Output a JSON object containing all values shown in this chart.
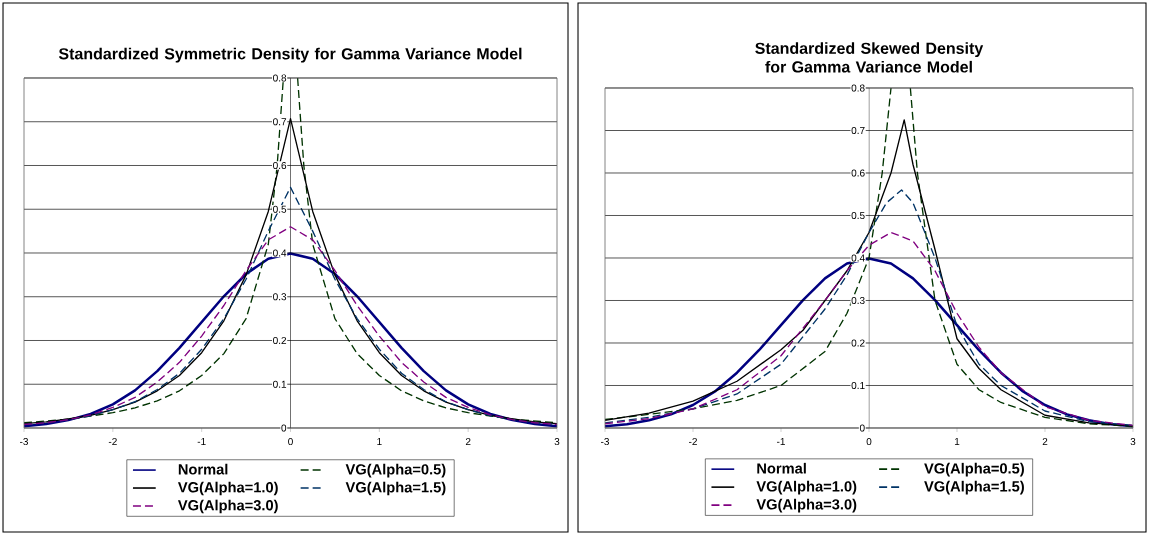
{
  "chart_data": [
    {
      "type": "line",
      "title": "Standardized Symmetric Density for Gamma Variance Model",
      "xlim": [
        -3,
        3
      ],
      "xticks": [
        -3,
        -2,
        -1,
        0,
        1,
        2,
        3
      ],
      "ylim": [
        0,
        0.8
      ],
      "yticks": [
        0,
        0.1,
        0.2,
        0.3,
        0.4,
        0.5,
        0.6,
        0.7,
        0.8
      ],
      "grid": "y",
      "legend": "bottom",
      "series": [
        {
          "name": "Normal",
          "color": "#000080",
          "line_style": "solid",
          "x": [
            -3,
            -2.75,
            -2.5,
            -2.25,
            -2,
            -1.75,
            -1.5,
            -1.25,
            -1,
            -0.75,
            -0.5,
            -0.25,
            0,
            0.25,
            0.5,
            0.75,
            1,
            1.25,
            1.5,
            1.75,
            2,
            2.25,
            2.5,
            2.75,
            3
          ],
          "values": [
            0.004,
            0.009,
            0.018,
            0.032,
            0.054,
            0.086,
            0.13,
            0.183,
            0.242,
            0.301,
            0.352,
            0.387,
            0.399,
            0.387,
            0.352,
            0.301,
            0.242,
            0.183,
            0.13,
            0.086,
            0.054,
            0.032,
            0.018,
            0.009,
            0.004
          ]
        },
        {
          "name": "VG(Alpha=0.5)",
          "color": "#003300",
          "line_style": "dashed",
          "x": [
            -3,
            -2.5,
            -2,
            -1.75,
            -1.5,
            -1.25,
            -1,
            -0.75,
            -0.5,
            -0.25,
            -0.15,
            -0.08,
            0,
            0.08,
            0.15,
            0.25,
            0.5,
            0.75,
            1,
            1.25,
            1.5,
            1.75,
            2,
            2.5,
            3
          ],
          "values": [
            0.012,
            0.02,
            0.035,
            0.046,
            0.062,
            0.085,
            0.12,
            0.17,
            0.25,
            0.42,
            0.6,
            0.8,
            null,
            0.8,
            0.6,
            0.42,
            0.25,
            0.17,
            0.12,
            0.085,
            0.062,
            0.046,
            0.035,
            0.02,
            0.012
          ]
        },
        {
          "name": "VG(Alpha=1.0)",
          "color": "#000000",
          "line_style": "solid",
          "x": [
            -3,
            -2.75,
            -2.5,
            -2.25,
            -2,
            -1.75,
            -1.5,
            -1.25,
            -1,
            -0.75,
            -0.5,
            -0.25,
            0,
            0.25,
            0.5,
            0.75,
            1,
            1.25,
            1.5,
            1.75,
            2,
            2.25,
            2.5,
            2.75,
            3
          ],
          "values": [
            0.01,
            0.014,
            0.021,
            0.029,
            0.042,
            0.059,
            0.085,
            0.12,
            0.172,
            0.245,
            0.35,
            0.495,
            0.707,
            0.495,
            0.35,
            0.245,
            0.172,
            0.12,
            0.085,
            0.059,
            0.042,
            0.029,
            0.021,
            0.014,
            0.01
          ]
        },
        {
          "name": "VG(Alpha=1.5)",
          "color": "#003366",
          "line_style": "dashed",
          "x": [
            -3,
            -2.75,
            -2.5,
            -2.25,
            -2,
            -1.75,
            -1.5,
            -1.25,
            -1,
            -0.75,
            -0.5,
            -0.25,
            0,
            0.25,
            0.5,
            0.75,
            1,
            1.25,
            1.5,
            1.75,
            2,
            2.25,
            2.5,
            2.75,
            3
          ],
          "values": [
            0.008,
            0.012,
            0.019,
            0.028,
            0.042,
            0.06,
            0.088,
            0.125,
            0.18,
            0.25,
            0.34,
            0.45,
            0.55,
            0.45,
            0.34,
            0.25,
            0.18,
            0.125,
            0.088,
            0.06,
            0.042,
            0.028,
            0.019,
            0.012,
            0.008
          ]
        },
        {
          "name": "VG(Alpha=3.0)",
          "color": "#800080",
          "line_style": "dashed",
          "x": [
            -3,
            -2.75,
            -2.5,
            -2.25,
            -2,
            -1.75,
            -1.5,
            -1.25,
            -1,
            -0.75,
            -0.5,
            -0.25,
            0,
            0.25,
            0.5,
            0.75,
            1,
            1.25,
            1.5,
            1.75,
            2,
            2.25,
            2.5,
            2.75,
            3
          ],
          "values": [
            0.008,
            0.012,
            0.019,
            0.03,
            0.047,
            0.07,
            0.105,
            0.15,
            0.21,
            0.28,
            0.36,
            0.43,
            0.46,
            0.43,
            0.36,
            0.28,
            0.21,
            0.15,
            0.105,
            0.07,
            0.047,
            0.03,
            0.019,
            0.012,
            0.008
          ]
        }
      ]
    },
    {
      "type": "line",
      "title": "Standardized Skewed Density for Gamma Variance Model",
      "xlim": [
        -3,
        3
      ],
      "xticks": [
        -3,
        -2,
        -1,
        0,
        1,
        2,
        3
      ],
      "ylim": [
        0,
        0.8
      ],
      "yticks": [
        0,
        0.1,
        0.2,
        0.3,
        0.4,
        0.5,
        0.6,
        0.7,
        0.8
      ],
      "grid": "y",
      "legend": "bottom",
      "series": [
        {
          "name": "Normal",
          "color": "#000080",
          "line_style": "solid",
          "x": [
            -3,
            -2.75,
            -2.5,
            -2.25,
            -2,
            -1.75,
            -1.5,
            -1.25,
            -1,
            -0.75,
            -0.5,
            -0.25,
            0,
            0.25,
            0.5,
            0.75,
            1,
            1.25,
            1.5,
            1.75,
            2,
            2.25,
            2.5,
            2.75,
            3
          ],
          "values": [
            0.004,
            0.009,
            0.018,
            0.032,
            0.054,
            0.086,
            0.13,
            0.183,
            0.242,
            0.301,
            0.352,
            0.387,
            0.399,
            0.387,
            0.352,
            0.301,
            0.242,
            0.183,
            0.13,
            0.086,
            0.054,
            0.032,
            0.018,
            0.009,
            0.004
          ]
        },
        {
          "name": "VG(Alpha=0.5)",
          "color": "#003300",
          "line_style": "dashed",
          "x": [
            -3,
            -2.5,
            -2,
            -1.5,
            -1,
            -0.5,
            -0.25,
            0,
            0.15,
            0.25,
            0.36,
            0.47,
            0.55,
            0.75,
            1,
            1.25,
            1.5,
            2,
            2.5,
            3
          ],
          "values": [
            0.02,
            0.032,
            0.045,
            0.065,
            0.1,
            0.18,
            0.27,
            0.4,
            0.6,
            0.8,
            null,
            0.8,
            0.6,
            0.3,
            0.15,
            0.09,
            0.06,
            0.025,
            0.01,
            0.004
          ]
        },
        {
          "name": "VG(Alpha=1.0)",
          "color": "#000000",
          "line_style": "solid",
          "x": [
            -3,
            -2.5,
            -2,
            -1.5,
            -1,
            -0.75,
            -0.5,
            -0.25,
            0,
            0.25,
            0.4,
            0.5,
            0.75,
            1,
            1.25,
            1.5,
            2,
            2.5,
            3
          ],
          "values": [
            0.018,
            0.035,
            0.063,
            0.11,
            0.184,
            0.23,
            0.3,
            0.37,
            0.46,
            0.6,
            0.725,
            0.62,
            0.42,
            0.21,
            0.14,
            0.09,
            0.03,
            0.012,
            0.005
          ]
        },
        {
          "name": "VG(Alpha=1.5)",
          "color": "#003366",
          "line_style": "dashed",
          "x": [
            -3,
            -2.5,
            -2,
            -1.5,
            -1,
            -0.5,
            -0.25,
            0,
            0.2,
            0.37,
            0.5,
            0.75,
            1,
            1.25,
            1.5,
            2,
            2.5,
            3
          ],
          "values": [
            0.012,
            0.025,
            0.045,
            0.08,
            0.15,
            0.28,
            0.36,
            0.46,
            0.53,
            0.56,
            0.53,
            0.4,
            0.24,
            0.15,
            0.1,
            0.04,
            0.015,
            0.006
          ]
        },
        {
          "name": "VG(Alpha=3.0)",
          "color": "#800080",
          "line_style": "dashed",
          "x": [
            -3,
            -2.5,
            -2,
            -1.5,
            -1,
            -0.5,
            -0.25,
            0,
            0.25,
            0.5,
            0.75,
            1,
            1.25,
            1.5,
            2,
            2.5,
            3
          ],
          "values": [
            0.01,
            0.022,
            0.045,
            0.09,
            0.17,
            0.3,
            0.37,
            0.43,
            0.46,
            0.44,
            0.37,
            0.27,
            0.19,
            0.13,
            0.05,
            0.018,
            0.006
          ]
        }
      ]
    }
  ]
}
